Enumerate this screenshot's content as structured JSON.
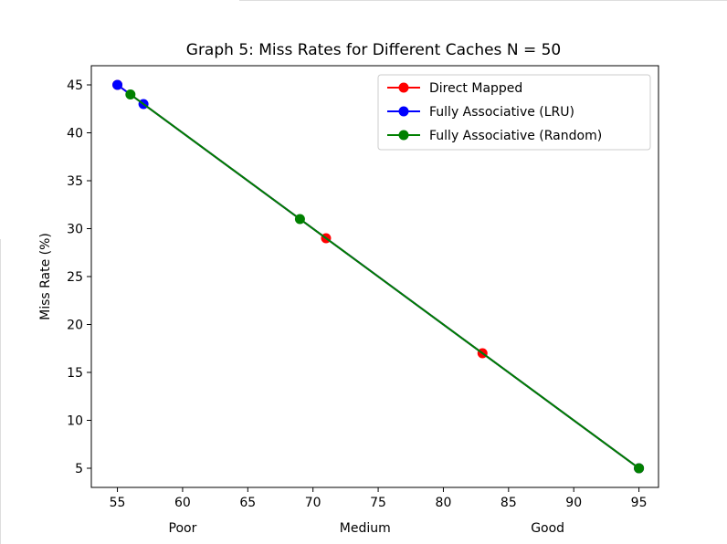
{
  "chart_data": {
    "type": "line",
    "title": "Graph 5: Miss Rates for Different Caches N = 50",
    "xlabel": "",
    "ylabel": "Miss Rate (%)",
    "xlim": [
      53,
      96.5
    ],
    "ylim": [
      3,
      47
    ],
    "xticks": [
      55,
      60,
      65,
      70,
      75,
      80,
      85,
      90,
      95
    ],
    "yticks": [
      5,
      10,
      15,
      20,
      25,
      30,
      35,
      40,
      45
    ],
    "category_labels": [
      {
        "text": "Poor",
        "x": 60
      },
      {
        "text": "Medium",
        "x": 74
      },
      {
        "text": "Good",
        "x": 88
      }
    ],
    "grid": false,
    "legend": "top-right",
    "series": [
      {
        "name": "Direct Mapped",
        "color": "#ff0000",
        "points": [
          [
            55,
            45
          ],
          [
            71,
            29
          ],
          [
            83,
            17
          ],
          [
            95,
            5
          ]
        ]
      },
      {
        "name": "Fully Associative (LRU)",
        "color": "#0000ff",
        "points": [
          [
            55,
            45
          ],
          [
            57,
            43
          ],
          [
            95,
            5
          ]
        ]
      },
      {
        "name": "Fully Associative (Random)",
        "color": "#008000",
        "points": [
          [
            56,
            44
          ],
          [
            69,
            31
          ],
          [
            95,
            5
          ]
        ]
      }
    ]
  }
}
